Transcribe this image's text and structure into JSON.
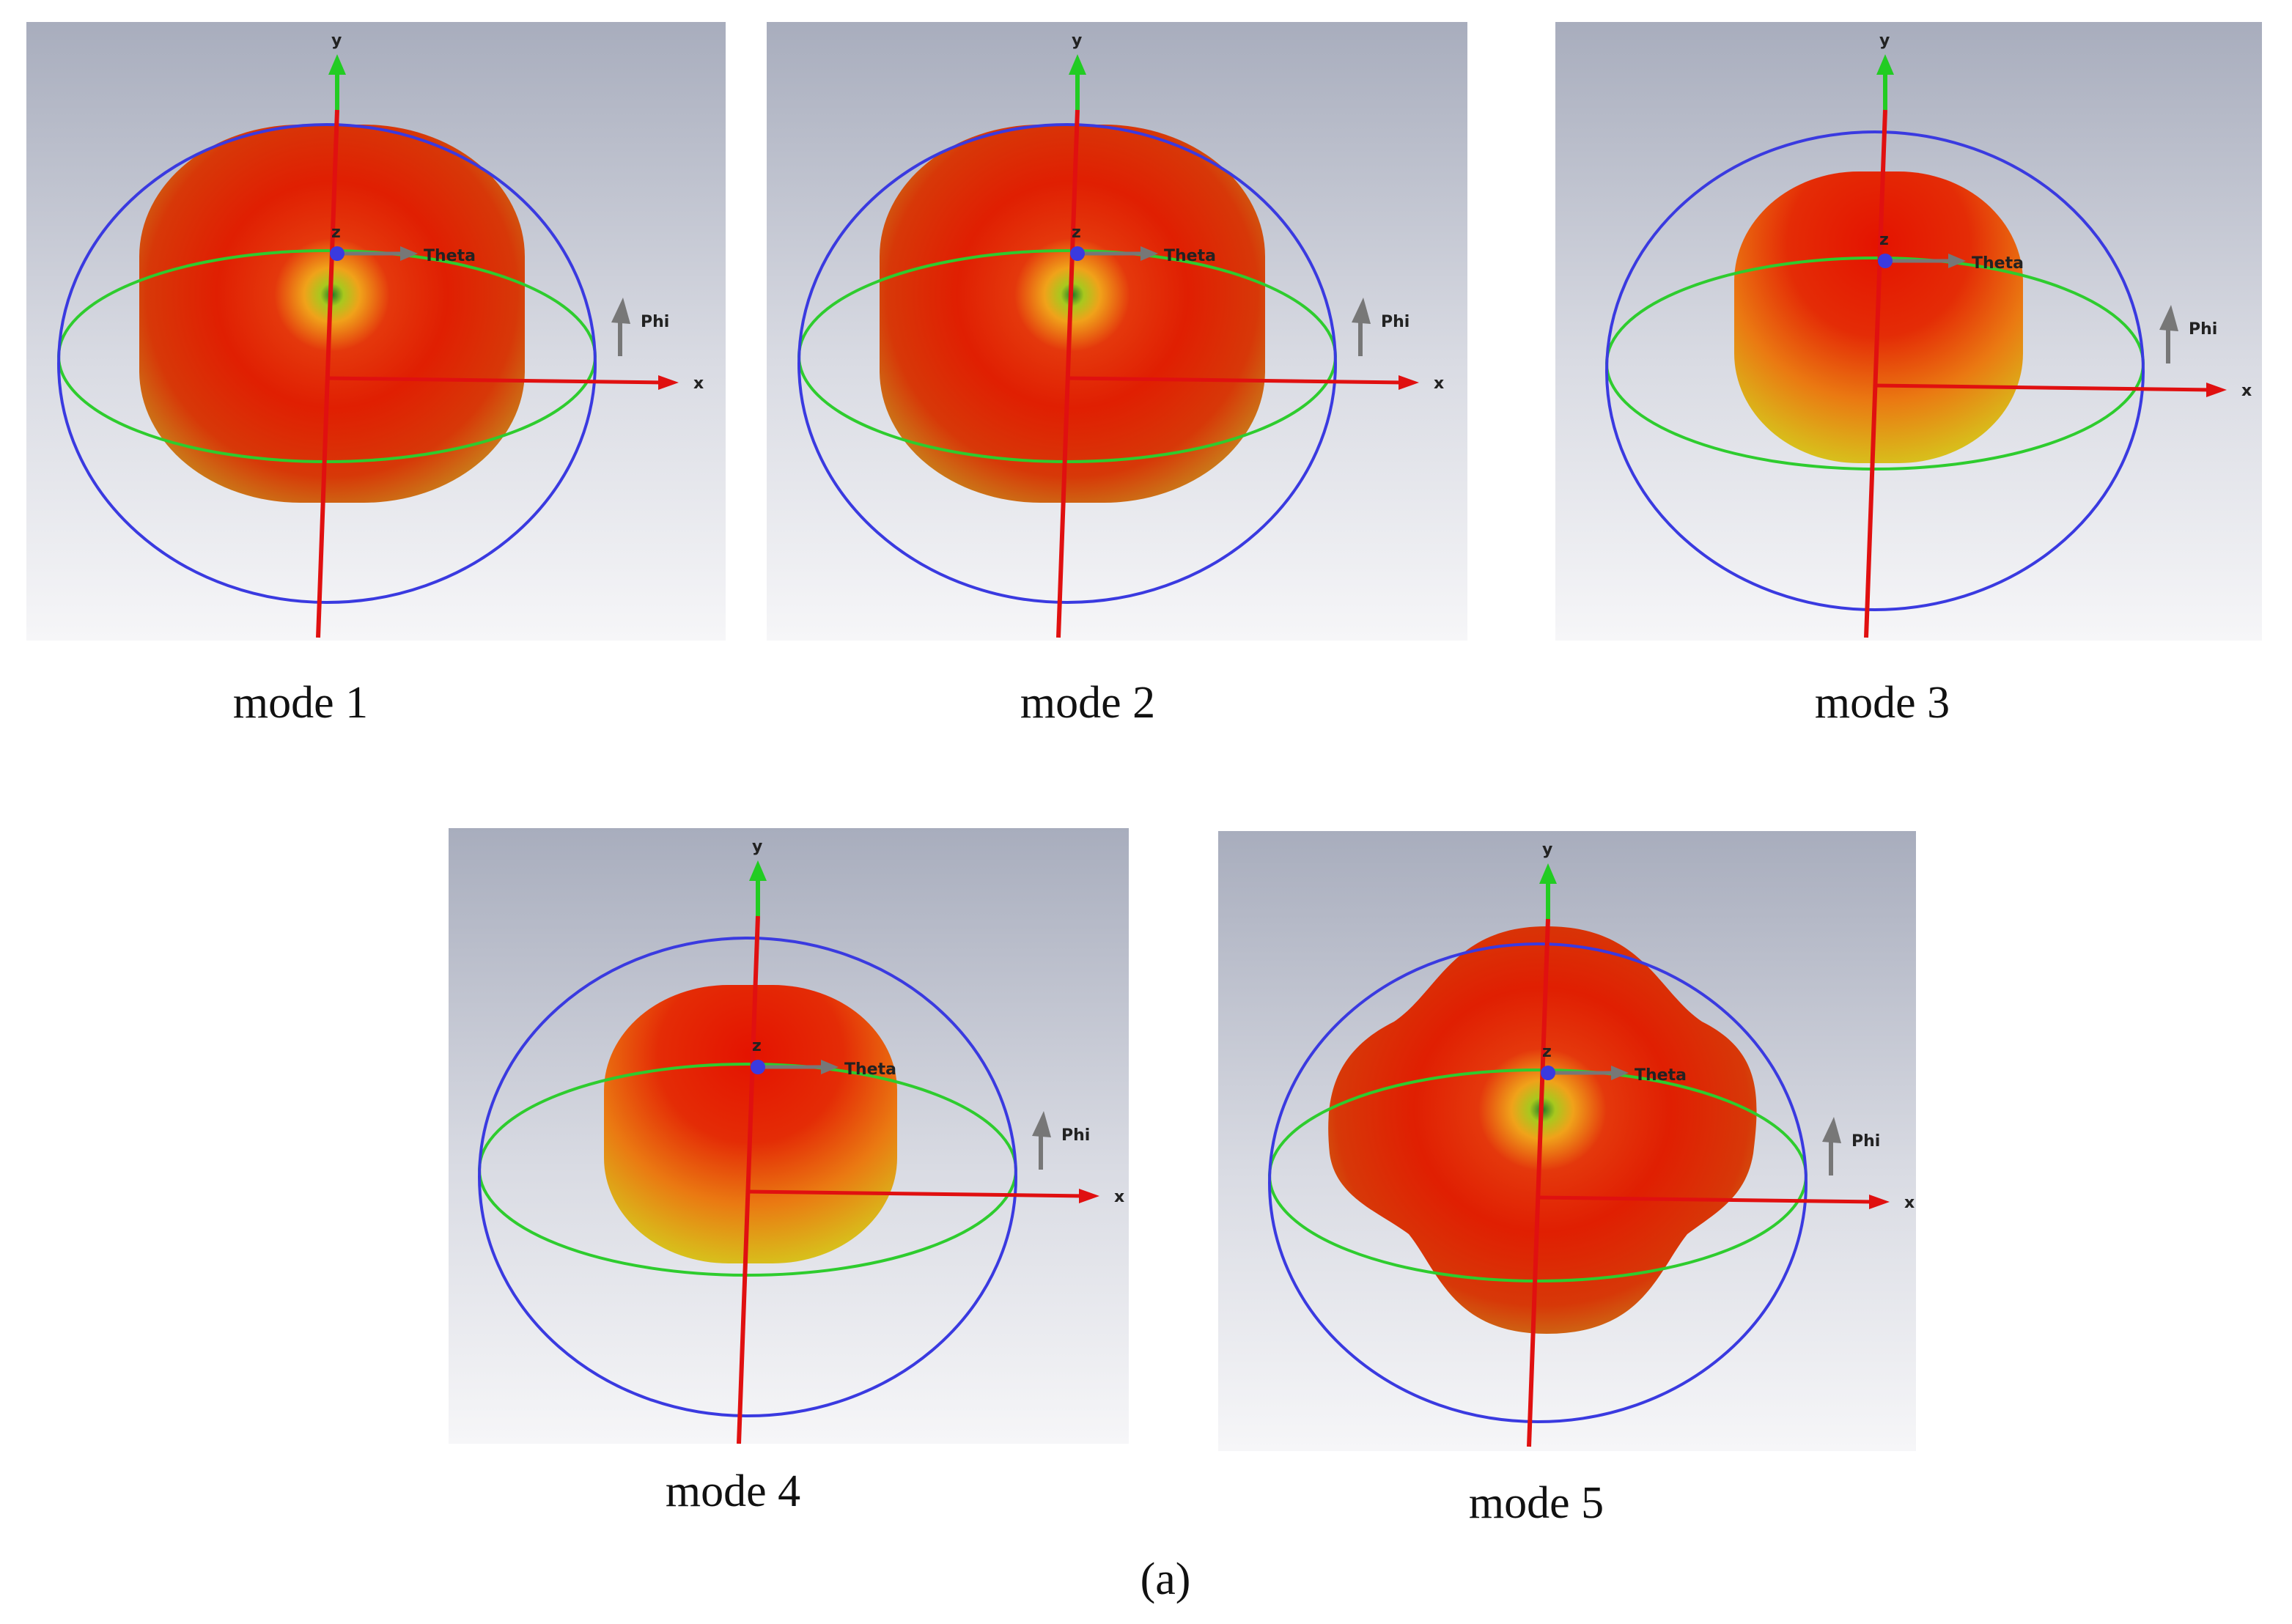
{
  "panels": [
    {
      "caption": "mode 1",
      "labels": {
        "y": "y",
        "z": "z",
        "theta": "Theta",
        "phi": "Phi",
        "x": "x"
      }
    },
    {
      "caption": "mode 2",
      "labels": {
        "y": "y",
        "z": "z",
        "theta": "Theta",
        "phi": "Phi",
        "x": "x"
      }
    },
    {
      "caption": "mode 3",
      "labels": {
        "y": "y",
        "z": "z",
        "theta": "Theta",
        "phi": "Phi",
        "x": "x"
      }
    },
    {
      "caption": "mode 4",
      "labels": {
        "y": "y",
        "z": "z",
        "theta": "Theta",
        "phi": "Phi",
        "x": "x"
      }
    },
    {
      "caption": "mode 5",
      "labels": {
        "y": "y",
        "z": "z",
        "theta": "Theta",
        "phi": "Phi",
        "x": "x"
      }
    }
  ],
  "figure_label": "(a)"
}
